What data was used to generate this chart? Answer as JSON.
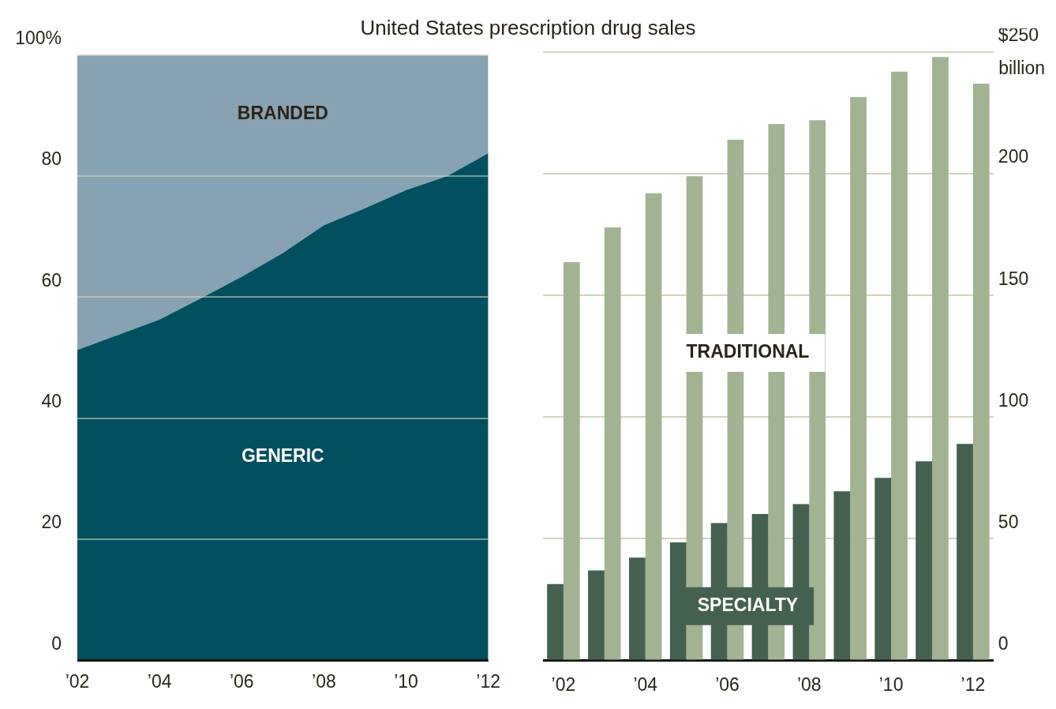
{
  "chart_data": [
    {
      "type": "area",
      "title": "United States prescription drug sales",
      "stacked": true,
      "x": [
        2002,
        2003,
        2004,
        2005,
        2006,
        2007,
        2008,
        2009,
        2010,
        2011,
        2012
      ],
      "series": [
        {
          "name": "GENERIC",
          "color": "#02505f",
          "values": [
            51.3,
            53.8,
            56.3,
            59.8,
            63.4,
            67.3,
            71.9,
            74.7,
            77.7,
            80,
            83.8
          ]
        },
        {
          "name": "BRANDED",
          "color": "#87a2b2",
          "values": [
            48.7,
            46.2,
            43.7,
            40.2,
            36.6,
            32.7,
            28.1,
            25.3,
            22.3,
            20,
            16.2
          ]
        }
      ],
      "xlim": [
        2002,
        2012
      ],
      "xticks": [
        {
          "value": 2002,
          "label": "’02"
        },
        {
          "value": 2004,
          "label": "’04"
        },
        {
          "value": 2006,
          "label": "’06"
        },
        {
          "value": 2008,
          "label": "’08"
        },
        {
          "value": 2010,
          "label": "’10"
        },
        {
          "value": 2012,
          "label": "’12"
        }
      ],
      "ylim": [
        0,
        100
      ],
      "yticks": [
        0,
        20,
        40,
        60,
        80,
        {
          "value": 100,
          "label": "100%"
        }
      ],
      "grid": "y",
      "legend": false
    },
    {
      "type": "bar",
      "ylabel": "billion",
      "categories": [
        "’02",
        null,
        "’04",
        null,
        "’06",
        null,
        "’08",
        null,
        "’10",
        null,
        "’12"
      ],
      "series": [
        {
          "name": "SPECIALTY",
          "color": "#446150",
          "values": [
            31.4,
            37,
            42.2,
            48.5,
            56.4,
            60.2,
            64.2,
            69.5,
            75,
            81.8,
            89
          ]
        },
        {
          "name": "TRADITIONAL",
          "color": "#a2b392",
          "values": [
            163.7,
            178,
            192,
            199,
            214,
            220.5,
            222,
            231.5,
            242,
            248,
            237
          ]
        }
      ],
      "ylim": [
        0,
        250
      ],
      "yticks": [
        0,
        50,
        100,
        150,
        200,
        {
          "value": 250,
          "label": "$250"
        }
      ],
      "grid": "y",
      "legend": false
    }
  ]
}
